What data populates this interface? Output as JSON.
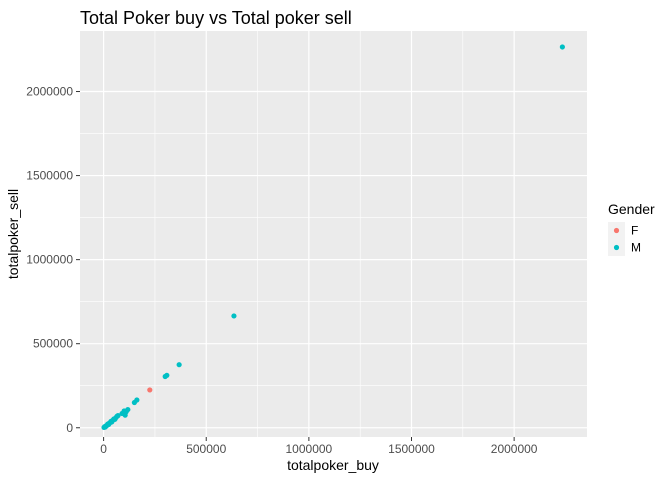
{
  "chart_data": {
    "type": "scatter",
    "title": "Total Poker buy vs Total poker sell",
    "xlabel": "totalpoker_buy",
    "ylabel": "totalpoker_sell",
    "xlim": [
      -115000,
      2355000
    ],
    "ylim": [
      -55000,
      2360000
    ],
    "xticks": [
      0,
      500000,
      1000000,
      1500000,
      2000000
    ],
    "xtick_labels": [
      "0",
      "500000",
      "1000000",
      "1500000",
      "2000000"
    ],
    "yticks": [
      0,
      500000,
      1000000,
      1500000,
      2000000
    ],
    "ytick_labels": [
      "0",
      "500000",
      "1000000",
      "1500000",
      "2000000"
    ],
    "grid": true,
    "legend": {
      "title": "Gender",
      "position": "right",
      "entries": [
        {
          "label": "F",
          "color": "#F8766D"
        },
        {
          "label": "M",
          "color": "#00BFC4"
        }
      ]
    },
    "series": [
      {
        "name": "F",
        "color": "#F8766D",
        "points": [
          {
            "x": 225000,
            "y": 225000
          }
        ]
      },
      {
        "name": "M",
        "color": "#00BFC4",
        "points": [
          {
            "x": 2000,
            "y": 2000
          },
          {
            "x": 5000,
            "y": 6000
          },
          {
            "x": 8000,
            "y": 4000
          },
          {
            "x": 10000,
            "y": 10000
          },
          {
            "x": 14000,
            "y": 12000
          },
          {
            "x": 18000,
            "y": 16000
          },
          {
            "x": 20000,
            "y": 22000
          },
          {
            "x": 25000,
            "y": 20000
          },
          {
            "x": 28000,
            "y": 28000
          },
          {
            "x": 32000,
            "y": 30000
          },
          {
            "x": 36000,
            "y": 38000
          },
          {
            "x": 40000,
            "y": 35000
          },
          {
            "x": 45000,
            "y": 45000
          },
          {
            "x": 50000,
            "y": 52000
          },
          {
            "x": 55000,
            "y": 50000
          },
          {
            "x": 60000,
            "y": 60000
          },
          {
            "x": 65000,
            "y": 68000
          },
          {
            "x": 70000,
            "y": 72000
          },
          {
            "x": 90000,
            "y": 85000
          },
          {
            "x": 100000,
            "y": 100000
          },
          {
            "x": 105000,
            "y": 75000
          },
          {
            "x": 110000,
            "y": 95000
          },
          {
            "x": 118000,
            "y": 108000
          },
          {
            "x": 150000,
            "y": 150000
          },
          {
            "x": 162000,
            "y": 165000
          },
          {
            "x": 300000,
            "y": 305000
          },
          {
            "x": 308000,
            "y": 312000
          },
          {
            "x": 368000,
            "y": 375000
          },
          {
            "x": 635000,
            "y": 665000
          },
          {
            "x": 2235000,
            "y": 2265000
          }
        ]
      }
    ]
  }
}
